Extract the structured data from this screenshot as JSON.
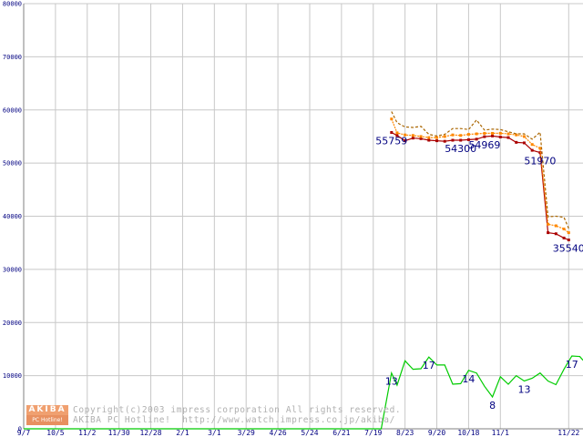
{
  "chart_data": {
    "type": "line",
    "ylim": [
      0,
      80000
    ],
    "yticks": [
      0,
      10000,
      20000,
      30000,
      40000,
      50000,
      60000,
      70000,
      80000
    ],
    "xticks": [
      "9/7",
      "10/5",
      "11/2",
      "11/30",
      "12/28",
      "2/1",
      "3/1",
      "3/29",
      "4/26",
      "5/24",
      "6/21",
      "7/19",
      "8/23",
      "9/20",
      "10/18",
      "11/1",
      "11/22"
    ],
    "grid": true,
    "series": [
      {
        "color": "#aa0000",
        "marker": "square",
        "points": [
          [
            46.3,
            55759
          ],
          [
            47,
            55200
          ],
          [
            48,
            54200
          ],
          [
            49,
            54700
          ],
          [
            50,
            54600
          ],
          [
            51,
            54300
          ],
          [
            52,
            54200
          ],
          [
            53,
            54100
          ],
          [
            54,
            54300
          ],
          [
            55,
            54300
          ],
          [
            56,
            54400
          ],
          [
            57,
            54500
          ],
          [
            58,
            54969
          ],
          [
            59,
            55100
          ],
          [
            60,
            54900
          ],
          [
            61,
            54800
          ],
          [
            62,
            53900
          ],
          [
            63,
            53800
          ],
          [
            64,
            52400
          ],
          [
            65,
            51970
          ],
          [
            66,
            36900
          ],
          [
            67,
            36700
          ],
          [
            68,
            35900
          ],
          [
            68.6,
            35540
          ]
        ]
      },
      {
        "color": "#ff8800",
        "marker": "square",
        "dash": "2,1",
        "points": [
          [
            46.3,
            58300
          ],
          [
            47,
            55700
          ],
          [
            48,
            55300
          ],
          [
            49,
            55200
          ],
          [
            50,
            55000
          ],
          [
            51,
            54800
          ],
          [
            52,
            54800
          ],
          [
            53,
            55000
          ],
          [
            54,
            55300
          ],
          [
            55,
            55200
          ],
          [
            56,
            55400
          ],
          [
            57,
            55500
          ],
          [
            58,
            55600
          ],
          [
            59,
            55600
          ],
          [
            60,
            55600
          ],
          [
            61,
            55500
          ],
          [
            62,
            55300
          ],
          [
            63,
            55000
          ],
          [
            64,
            53500
          ],
          [
            65,
            52800
          ],
          [
            66,
            38500
          ],
          [
            67,
            38200
          ],
          [
            68,
            37600
          ],
          [
            68.6,
            36900
          ]
        ]
      },
      {
        "color": "#aa6600",
        "dash": "3,2",
        "points": [
          [
            46.3,
            59700
          ],
          [
            47,
            57600
          ],
          [
            48,
            56800
          ],
          [
            49,
            56700
          ],
          [
            50,
            56900
          ],
          [
            51,
            55400
          ],
          [
            52,
            55100
          ],
          [
            53,
            55400
          ],
          [
            54,
            56500
          ],
          [
            55,
            56500
          ],
          [
            56,
            56300
          ],
          [
            57,
            58100
          ],
          [
            58,
            56200
          ],
          [
            59,
            56400
          ],
          [
            60,
            56300
          ],
          [
            61,
            55900
          ],
          [
            62,
            55500
          ],
          [
            63,
            55500
          ],
          [
            64,
            54500
          ],
          [
            65,
            55800
          ],
          [
            66,
            39900
          ],
          [
            67,
            40000
          ],
          [
            68,
            39800
          ],
          [
            68.6,
            37700
          ]
        ]
      },
      {
        "color": "#00cc00",
        "points": [
          [
            0,
            0
          ],
          [
            45,
            0
          ],
          [
            46.3,
            10500
          ],
          [
            47,
            8200
          ],
          [
            48,
            12800
          ],
          [
            49,
            11200
          ],
          [
            50,
            11300
          ],
          [
            51,
            13500
          ],
          [
            52,
            12000
          ],
          [
            53,
            12000
          ],
          [
            54,
            8400
          ],
          [
            55,
            8500
          ],
          [
            56,
            11000
          ],
          [
            57,
            10500
          ],
          [
            58,
            8000
          ],
          [
            59,
            6000
          ],
          [
            60,
            9800
          ],
          [
            61,
            8400
          ],
          [
            62,
            10000
          ],
          [
            63,
            9000
          ],
          [
            64,
            9500
          ],
          [
            65,
            10500
          ],
          [
            66,
            9000
          ],
          [
            67,
            8300
          ],
          [
            68,
            11200
          ],
          [
            69,
            13700
          ],
          [
            70,
            13600
          ],
          [
            70.4,
            12900
          ]
        ]
      }
    ],
    "data_labels": [
      {
        "text": "55759",
        "x": 46.3,
        "y": 55759
      },
      {
        "text": "54300",
        "x": 55,
        "y": 54300
      },
      {
        "text": "54969",
        "x": 58,
        "y": 54969
      },
      {
        "text": "51970",
        "x": 65,
        "y": 51970
      },
      {
        "text": "35540",
        "x": 68.6,
        "y": 35540
      },
      {
        "text": "13",
        "x": 46.3,
        "y": 10500
      },
      {
        "text": "17",
        "x": 51,
        "y": 13500
      },
      {
        "text": "14",
        "x": 56,
        "y": 11000
      },
      {
        "text": "8",
        "x": 59,
        "y": 6000
      },
      {
        "text": "13",
        "x": 63,
        "y": 9000
      },
      {
        "text": "17",
        "x": 69,
        "y": 13700
      }
    ]
  },
  "footer": {
    "logo_top": "AKIBA",
    "logo_bottom": "PC Hotline!",
    "copyright_line1": "Copyright(c)2003 impress corporation All rights reserved.",
    "copyright_line2": "AKIBA PC Hotline!  http://www.watch.impress.co.jp/akiba/"
  }
}
